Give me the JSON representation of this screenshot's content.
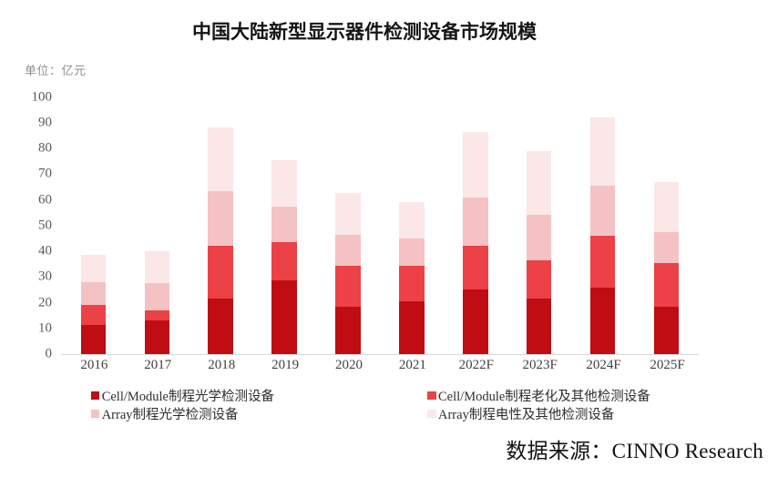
{
  "title": "中国大陆新型显示器件检测设备市场规模",
  "unit_label": "单位：亿元",
  "source_note": "数据来源：CINNO Research",
  "colors": {
    "cell_optical": "#bf0d13",
    "cell_aging_other": "#eb4147",
    "array_optical": "#f5c2c4",
    "array_electrical_other": "#fbe7e8",
    "axis_line": "#d9d9d9",
    "title_text": "#151515",
    "tick_text": "#404040"
  },
  "chart_data": {
    "type": "bar",
    "stacked": true,
    "title": "中国大陆新型显示器件检测设备市场规模",
    "ylabel": "单位：亿元",
    "ylim": [
      0,
      100
    ],
    "ystep": 10,
    "grid": false,
    "legend_position": "bottom",
    "categories": [
      "2016",
      "2017",
      "2018",
      "2019",
      "2020",
      "2021",
      "2022F",
      "2023F",
      "2024F",
      "2025F"
    ],
    "series": [
      {
        "name": "Cell/Module制程光学检测设备",
        "color": "#bf0d13",
        "values": [
          11.5,
          13,
          21.5,
          28.5,
          18.5,
          20.5,
          25,
          21.5,
          26,
          18.5
        ]
      },
      {
        "name": "Cell/Module制程老化及其他检测设备",
        "color": "#eb4147",
        "values": [
          7.5,
          4,
          20.5,
          15,
          16,
          14,
          17,
          15,
          20,
          17
        ]
      },
      {
        "name": "Array制程光学检测设备",
        "color": "#f5c2c4",
        "values": [
          9,
          10.5,
          21.5,
          14,
          12,
          10.5,
          19,
          17.5,
          19.5,
          12
        ]
      },
      {
        "name": "Array制程电性及其他检测设备",
        "color": "#fbe7e8",
        "values": [
          10.5,
          12.5,
          24.5,
          18,
          16,
          14,
          25.5,
          25,
          26.5,
          19.5
        ]
      }
    ],
    "totals": [
      38.5,
      40,
      88,
      75.5,
      62.5,
      59,
      86.5,
      79,
      92,
      67
    ]
  },
  "legend": {
    "items": [
      {
        "label": "Cell/Module制程光学检测设备",
        "color": "#bf0d13",
        "col": 0,
        "row": 0
      },
      {
        "label": "Cell/Module制程老化及其他检测设备",
        "color": "#eb4147",
        "col": 1,
        "row": 0
      },
      {
        "label": "Array制程光学检测设备",
        "color": "#f5c2c4",
        "col": 0,
        "row": 1
      },
      {
        "label": "Array制程电性及其他检测设备",
        "color": "#fbe7e8",
        "col": 1,
        "row": 1
      }
    ]
  },
  "axis": {
    "yticks": [
      0,
      10,
      20,
      30,
      40,
      50,
      60,
      70,
      80,
      90,
      100
    ]
  }
}
